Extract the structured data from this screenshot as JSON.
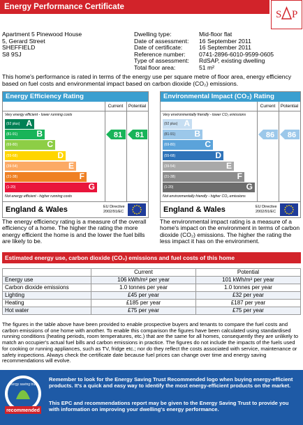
{
  "header": {
    "title": "Energy Performance Certificate",
    "logo_letters": [
      "S",
      "P"
    ]
  },
  "address": [
    "Apartment 5 Pinewood House",
    "5, Gerard Street",
    "SHEFFIELD",
    "S8 9SJ"
  ],
  "details": [
    [
      "Dwelling type:",
      "Mid-floor flat"
    ],
    [
      "Date of assessment:",
      "16 September 2011"
    ],
    [
      "Date of certificate:",
      "16 September 2011"
    ],
    [
      "Reference number:",
      "0741-2896-6010-9599-0605"
    ],
    [
      "Type of assessment:",
      "RdSAP, existing dwelling"
    ],
    [
      "Total floor area:",
      "51 m²"
    ]
  ],
  "intro": "This home's performance is rated in terms of the energy use per square metre of floor area, energy efficiency based on fuel costs and environmental impact based on carbon dioxide (CO₂) emissions.",
  "bands": [
    {
      "range": "(92 plus)",
      "letter": "A"
    },
    {
      "range": "(81-91)",
      "letter": "B"
    },
    {
      "range": "(69-80)",
      "letter": "C"
    },
    {
      "range": "(55-68)",
      "letter": "D"
    },
    {
      "range": "(39-54)",
      "letter": "E"
    },
    {
      "range": "(21-38)",
      "letter": "F"
    },
    {
      "range": "(1-20)",
      "letter": "G"
    }
  ],
  "panels": [
    {
      "title": "Energy Efficiency Rating",
      "columns": [
        "Current",
        "Potential"
      ],
      "top_caption": "Very energy efficient - lower running costs",
      "bottom_caption": "Not energy efficient - higher running costs",
      "current": 81,
      "potential": 81,
      "region": "England & Wales",
      "directive": [
        "EU Directive",
        "2002/91/EC"
      ],
      "description": "The energy efficiency rating is a measure of the overall efficiency of a home. The higher the rating the more energy efficient the home is and the lower the fuel bills are likely to be."
    },
    {
      "title": "Environmental Impact (CO₂) Rating",
      "columns": [
        "Current",
        "Potential"
      ],
      "top_caption": "Very environmentally friendly - lower CO₂ emissions",
      "bottom_caption": "Not environmentally friendly - higher CO₂ emissions",
      "current": 86,
      "potential": 86,
      "region": "England & Wales",
      "directive": [
        "EU Directive",
        "2002/91/EC"
      ],
      "description": "The environmental impact rating is a measure of a home's impact on the environment in terms of carbon dioxide (CO₂) emissions. The higher the rating the less impact it has on the environment."
    }
  ],
  "estimates_title": "Estimated energy use, carbon dioxide (CO₂) emissions and fuel costs of this home",
  "table": {
    "header": [
      "Current",
      "Potential"
    ],
    "rows": [
      [
        "Energy use",
        "106 kWh/m² per year",
        "101 kWh/m² per year"
      ],
      [
        "Carbon dioxide emissions",
        "1.0 tonnes per year",
        "1.0 tonnes per year"
      ],
      [
        "Lighting",
        "£45 per year",
        "£32 per year"
      ],
      [
        "Heating",
        "£185 per year",
        "£187 per year"
      ],
      [
        "Hot water",
        "£75 per year",
        "£75 per year"
      ]
    ]
  },
  "notes": "The figures in the table above have been provided to enable prospective buyers and tenants to compare the fuel costs and carbon emissions of one home with another. To enable this comparison the figures have been calculated using standardised running conditions (heating periods, room temperatures, etc.) that are the same for all homes, consequently they are unlikely to match an occupier's actual fuel bills and carbon emissions in practice. The figures do not include the impacts of the fuels used for cooking or running appliances, such as TV, fridge etc.; nor do they reflect the costs associated with service, maintenance or safety inspections. Always check the certificate date because fuel prices can change over time and energy saving recommendations will evolve.",
  "footer": {
    "logo_top": "energy saving trust",
    "logo_bottom": "recommended",
    "paragraphs": [
      "Remember to look for the Energy Saving Trust Recommended logo when buying energy-efficient products. It's a quick and easy way to identify the most energy-efficient products on the market.",
      "This EPC and recommendations report may be given to the Energy Saving Trust to provide you with information on improving your dwelling's energy performance."
    ]
  }
}
